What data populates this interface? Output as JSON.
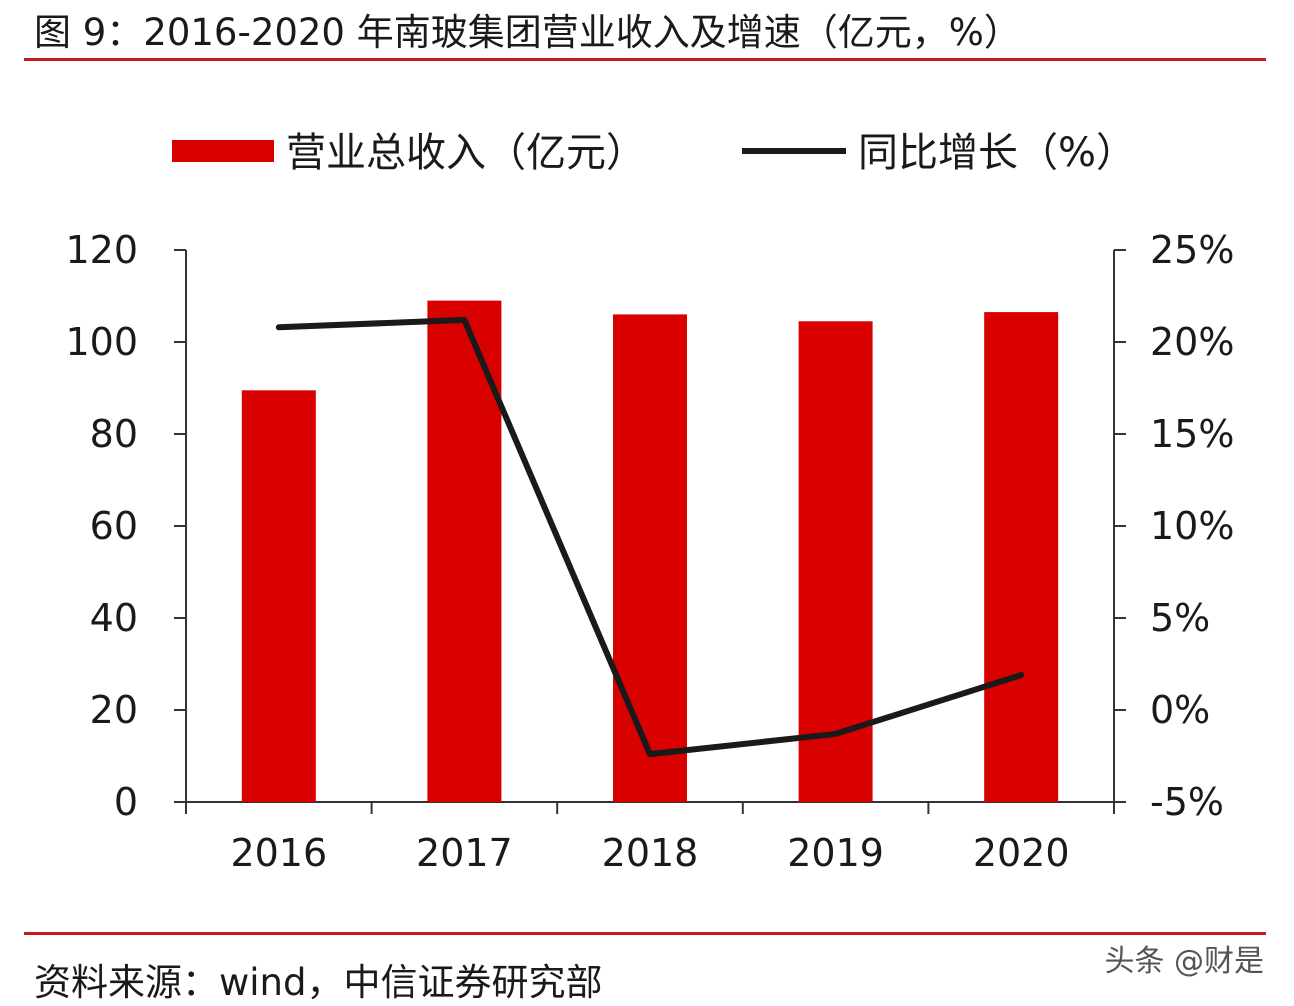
{
  "title": "图 9：2016-2020 年南玻集团营业收入及增速（亿元，%）",
  "source": "资料来源：wind，中信证券研究部",
  "watermark": "头条 @财是",
  "colors": {
    "bar": "#d90000",
    "line": "#1a1a1a",
    "rule": "#c21b1b"
  },
  "chart_data": {
    "type": "bar",
    "categories": [
      "2016",
      "2017",
      "2018",
      "2019",
      "2020"
    ],
    "series": [
      {
        "name": "营业总收入（亿元）",
        "type": "bar",
        "axis": "left",
        "values": [
          89.5,
          109,
          106,
          104.5,
          106.5
        ]
      },
      {
        "name": "同比增长（%）",
        "type": "line",
        "axis": "right",
        "values": [
          20.8,
          21.2,
          -2.4,
          -1.3,
          1.9
        ]
      }
    ],
    "y_left": {
      "ylim": [
        0,
        120
      ],
      "ticks": [
        0,
        20,
        40,
        60,
        80,
        100,
        120
      ],
      "tick_labels": [
        "0",
        "20",
        "40",
        "60",
        "80",
        "100",
        "120"
      ]
    },
    "y_right": {
      "ylim": [
        -5,
        25
      ],
      "ticks": [
        -5,
        0,
        5,
        10,
        15,
        20,
        25
      ],
      "tick_labels": [
        "-5%",
        "0%",
        "5%",
        "10%",
        "15%",
        "20%",
        "25%"
      ]
    },
    "legend": "top",
    "grid": false
  }
}
